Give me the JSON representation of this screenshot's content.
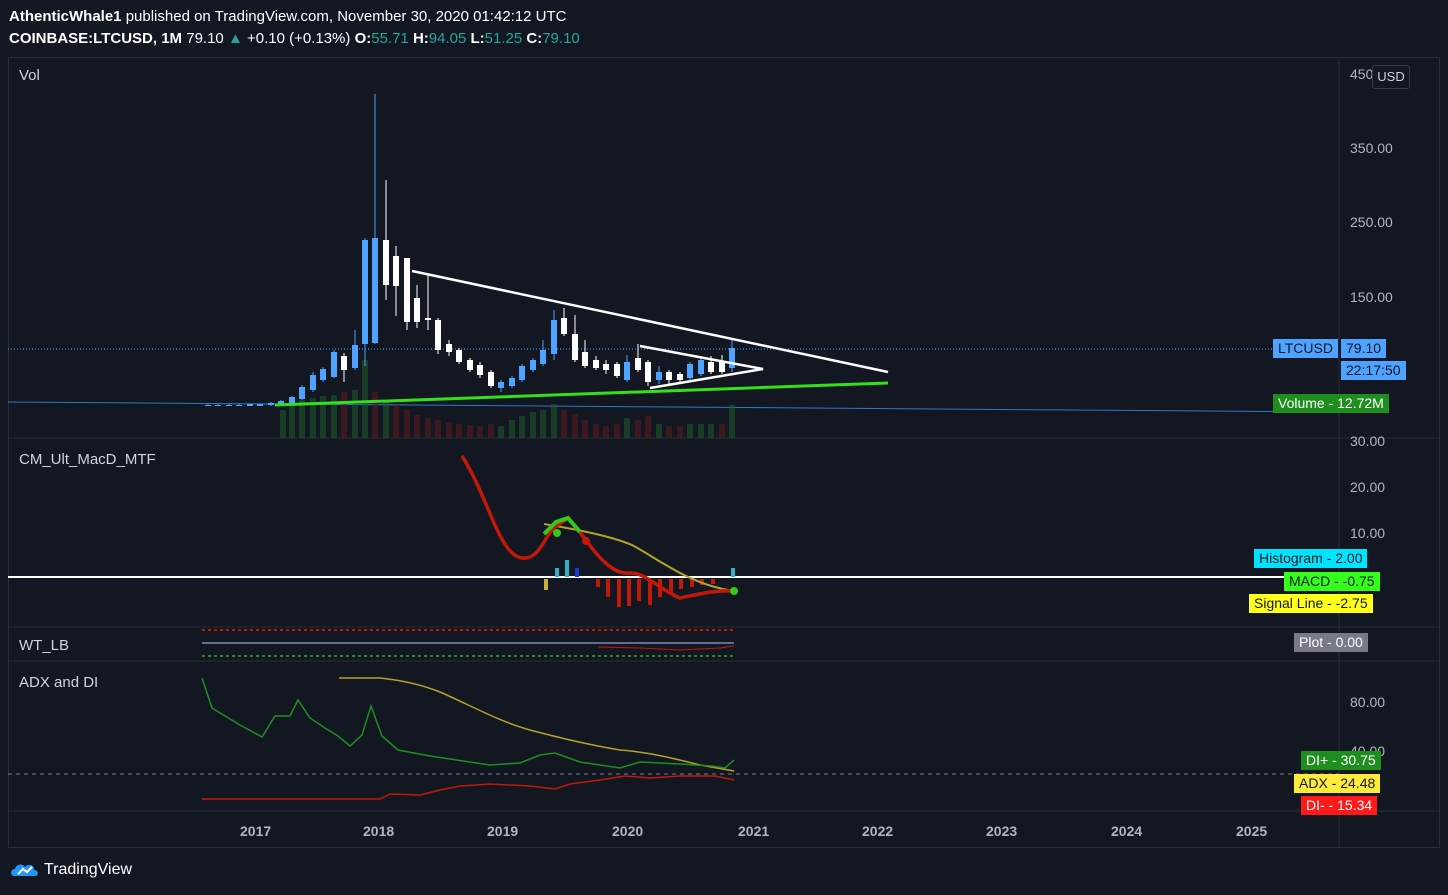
{
  "header": {
    "author": "AthenticWhale1",
    "publish_text": "published on TradingView.com, November 30, 2020 01:42:12 UTC",
    "symbol": "COINBASE:LTCUSD, 1M",
    "last": "79.10",
    "change": "+0.10 (+0.13%)",
    "o_label": "O:",
    "o_val": "55.71",
    "h_label": "H:",
    "h_val": "94.05",
    "l_label": "L:",
    "l_val": "51.25",
    "c_label": "C:",
    "c_val": "79.10"
  },
  "currency_button": "USD",
  "panes": {
    "price": {
      "label": "Vol",
      "ticks": [
        "450",
        "350.00",
        "250.00",
        "150.00"
      ]
    },
    "macd": {
      "label": "CM_Ult_MacD_MTF",
      "ticks": [
        "30.00",
        "20.00",
        "10.00"
      ]
    },
    "wt": {
      "label": "WT_LB"
    },
    "adx": {
      "label": "ADX and DI",
      "ticks": [
        "80.00",
        "40.00"
      ]
    }
  },
  "tags": {
    "ltcusd_name": "LTCUSD",
    "ltcusd_val": "79.10",
    "countdown": "22:17:50",
    "volume": "Volume - 12.72M",
    "histogram": "Histogram - 2.00",
    "macd": "MACD - -0.75",
    "signal": "Signal Line - -2.75",
    "plot1": "Plot - 0.00",
    "diplus": "DI+ - 30.75",
    "adx": "ADX - 24.48",
    "diminus": "DI- - 15.34"
  },
  "x_axis": [
    "2017",
    "2018",
    "2019",
    "2020",
    "2021",
    "2022",
    "2023",
    "2024",
    "2025"
  ],
  "footer": {
    "brand": "TradingView"
  },
  "colors": {
    "up": "#4da3ff",
    "down": "#ffffff",
    "trendline": "#ffffff",
    "support": "#33e01a",
    "macd_line": "#c21807",
    "signal_line": "#b3a32a",
    "background": "#131722"
  }
}
